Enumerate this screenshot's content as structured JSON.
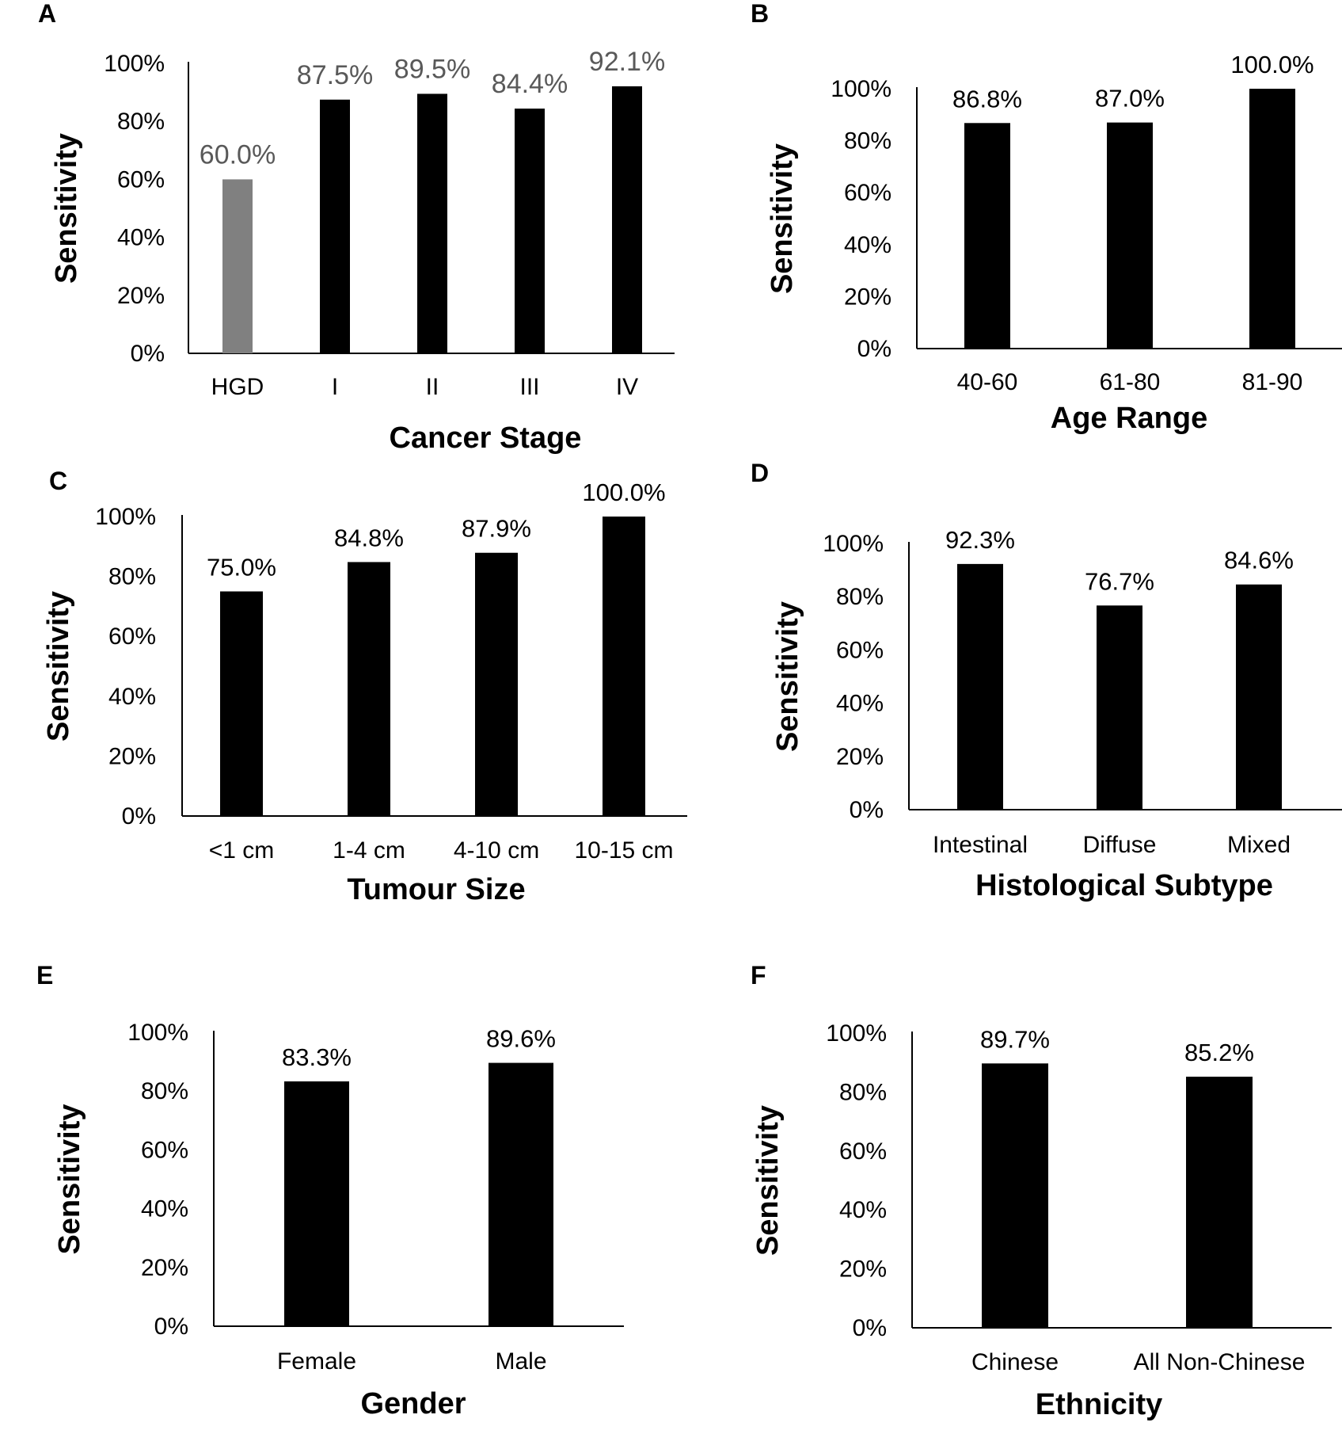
{
  "chart_data": [
    {
      "panel": "A",
      "type": "bar",
      "categories": [
        "HGD",
        "I",
        "II",
        "III",
        "IV"
      ],
      "values": [
        60.0,
        87.5,
        89.5,
        84.4,
        92.1
      ],
      "value_labels": [
        "60.0%",
        "87.5%",
        "89.5%",
        "84.4%",
        "92.1%"
      ],
      "bar_colors": [
        "#808080",
        "#000000",
        "#000000",
        "#000000",
        "#000000"
      ],
      "label_color": "#595959",
      "xlabel": "Cancer Stage",
      "ylabel": "Sensitivity",
      "yticks": [
        "0%",
        "20%",
        "40%",
        "60%",
        "80%",
        "100%"
      ],
      "ylim": [
        0,
        100
      ]
    },
    {
      "panel": "B",
      "type": "bar",
      "categories": [
        "40-60",
        "61-80",
        "81-90"
      ],
      "values": [
        86.8,
        87.0,
        100.0
      ],
      "value_labels": [
        "86.8%",
        "87.0%",
        "100.0%"
      ],
      "bar_colors": [
        "#000000",
        "#000000",
        "#000000"
      ],
      "label_color": "#000000",
      "xlabel": "Age Range",
      "ylabel": "Sensitivity",
      "yticks": [
        "0%",
        "20%",
        "40%",
        "60%",
        "80%",
        "100%"
      ],
      "ylim": [
        0,
        100
      ]
    },
    {
      "panel": "C",
      "type": "bar",
      "categories": [
        "<1 cm",
        "1-4 cm",
        "4-10 cm",
        "10-15 cm"
      ],
      "values": [
        75.0,
        84.8,
        87.9,
        100.0
      ],
      "value_labels": [
        "75.0%",
        "84.8%",
        "87.9%",
        "100.0%"
      ],
      "bar_colors": [
        "#000000",
        "#000000",
        "#000000",
        "#000000"
      ],
      "label_color": "#000000",
      "xlabel": "Tumour Size",
      "ylabel": "Sensitivity",
      "yticks": [
        "0%",
        "20%",
        "40%",
        "60%",
        "80%",
        "100%"
      ],
      "ylim": [
        0,
        100
      ]
    },
    {
      "panel": "D",
      "type": "bar",
      "categories": [
        "Intestinal",
        "Diffuse",
        "Mixed"
      ],
      "values": [
        92.3,
        76.7,
        84.6
      ],
      "value_labels": [
        "92.3%",
        "76.7%",
        "84.6%"
      ],
      "bar_colors": [
        "#000000",
        "#000000",
        "#000000"
      ],
      "label_color": "#000000",
      "xlabel": "Histological Subtype",
      "ylabel": "Sensitivity",
      "yticks": [
        "0%",
        "20%",
        "40%",
        "60%",
        "80%",
        "100%"
      ],
      "ylim": [
        0,
        100
      ]
    },
    {
      "panel": "E",
      "type": "bar",
      "categories": [
        "Female",
        "Male"
      ],
      "values": [
        83.3,
        89.6
      ],
      "value_labels": [
        "83.3%",
        "89.6%"
      ],
      "bar_colors": [
        "#000000",
        "#000000"
      ],
      "label_color": "#000000",
      "xlabel": "Gender",
      "ylabel": "Sensitivity",
      "yticks": [
        "0%",
        "20%",
        "40%",
        "60%",
        "80%",
        "100%"
      ],
      "ylim": [
        0,
        100
      ]
    },
    {
      "panel": "F",
      "type": "bar",
      "categories": [
        "Chinese",
        "All Non-Chinese"
      ],
      "values": [
        89.7,
        85.2
      ],
      "value_labels": [
        "89.7%",
        "85.2%"
      ],
      "bar_colors": [
        "#000000",
        "#000000"
      ],
      "label_color": "#000000",
      "xlabel": "Ethnicity",
      "ylabel": "Sensitivity",
      "yticks": [
        "0%",
        "20%",
        "40%",
        "60%",
        "80%",
        "100%"
      ],
      "ylim": [
        0,
        100
      ]
    }
  ]
}
